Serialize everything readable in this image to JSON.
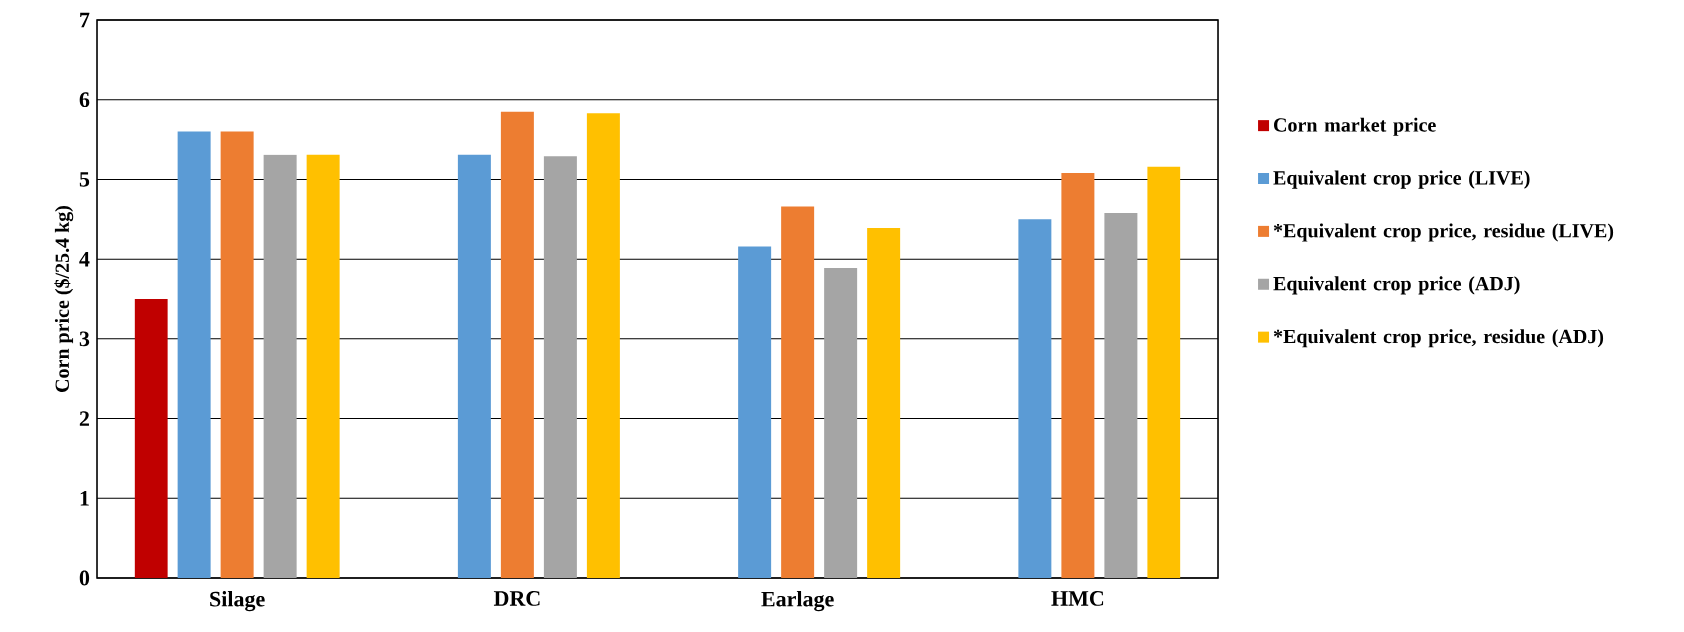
{
  "chart_data": {
    "type": "bar",
    "ylabel": "Corn price ($/25.4 kg)",
    "categories": [
      "Silage",
      "DRC",
      "Earlage",
      "HMC"
    ],
    "series": [
      {
        "name": "Corn market price",
        "color": "#c00000",
        "values": [
          3.5,
          null,
          null,
          null
        ]
      },
      {
        "name": "Equivalent crop price (LIVE)",
        "color": "#5b9bd5",
        "values": [
          5.6,
          5.31,
          4.16,
          4.5
        ]
      },
      {
        "name": "*Equivalent crop price, residue (LIVE)",
        "color": "#ed7d31",
        "values": [
          5.6,
          5.85,
          4.66,
          5.08
        ]
      },
      {
        "name": "Equivalent crop price (ADJ)",
        "color": "#a5a5a5",
        "values": [
          5.31,
          5.29,
          3.89,
          4.58
        ]
      },
      {
        "name": "*Equivalent crop price, residue (ADJ)",
        "color": "#ffc000",
        "values": [
          5.31,
          5.83,
          4.39,
          5.16
        ]
      }
    ],
    "ylim": [
      0,
      7
    ],
    "yticks": [
      0,
      1,
      2,
      3,
      4,
      5,
      6,
      7
    ],
    "grid": "y",
    "legend": "right"
  }
}
